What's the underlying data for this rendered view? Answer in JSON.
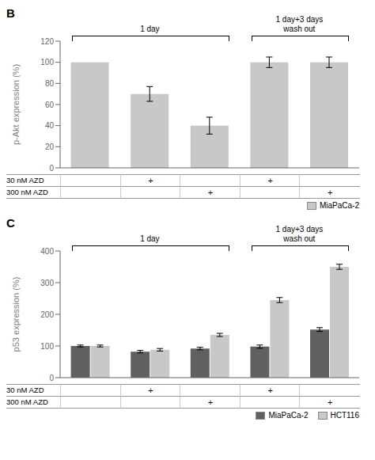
{
  "chart_data": [
    {
      "type": "bar",
      "title": "B",
      "categories": [
        null,
        null,
        null,
        null,
        null
      ],
      "series": [
        {
          "name": "MiaPaCa-2",
          "color": "#c8c8c8",
          "values": [
            100,
            70,
            40,
            100,
            100
          ],
          "errors": [
            0,
            7,
            8,
            5,
            5
          ]
        }
      ],
      "ylabel": "p-Akt expression (%)",
      "ylim": [
        0,
        120
      ],
      "yticks": [
        0,
        20,
        40,
        60,
        80,
        100,
        120
      ],
      "annotations": [
        "1 day",
        "1 day+3 days\nwash out"
      ],
      "table": [
        {
          "name": "30 nM AZD",
          "marks": [
            null,
            "+",
            null,
            "+",
            null
          ]
        },
        {
          "name": "300 nM AZD",
          "marks": [
            null,
            null,
            "+",
            null,
            "+"
          ]
        }
      ],
      "grid": false,
      "legend": "bottom",
      "tick_labels": "y"
    },
    {
      "type": "bar",
      "title": "C",
      "categories": [
        null,
        null,
        null,
        null,
        null
      ],
      "series": [
        {
          "name": "MiaPaCa-2",
          "color": "#606060",
          "values": [
            100,
            82,
            92,
            98,
            152
          ],
          "errors": [
            3,
            4,
            4,
            5,
            6
          ]
        },
        {
          "name": "HCT116",
          "color": "#c8c8c8",
          "values": [
            100,
            88,
            135,
            245,
            350
          ],
          "errors": [
            3,
            4,
            5,
            8,
            8
          ]
        }
      ],
      "ylabel": "p53 expression (%)",
      "ylim": [
        0,
        400
      ],
      "yticks": [
        0,
        100,
        200,
        300,
        400
      ],
      "annotations": [
        "1 day",
        "1 day+3 days\nwash out"
      ],
      "table": [
        {
          "name": "30 nM AZD",
          "marks": [
            null,
            "+",
            null,
            "+",
            null
          ]
        },
        {
          "name": "300 nM AZD",
          "marks": [
            null,
            null,
            "+",
            null,
            "+"
          ]
        }
      ],
      "grid": false,
      "legend": "bottom",
      "tick_labels": "y"
    }
  ]
}
